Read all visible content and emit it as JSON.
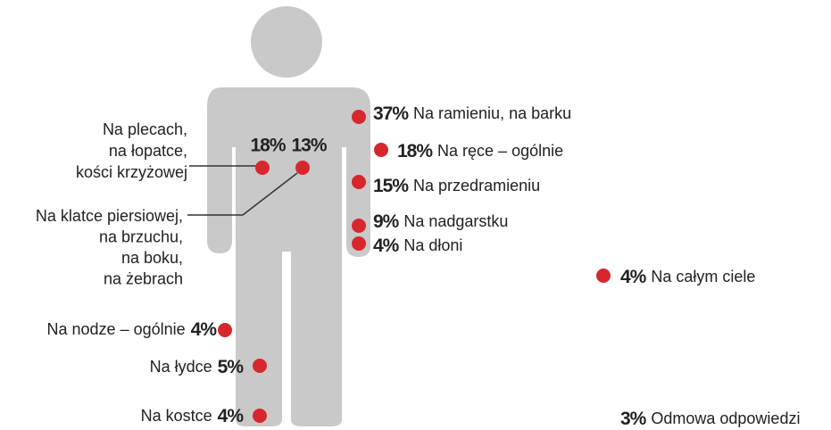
{
  "items": [
    {
      "percent": "37%",
      "label": [
        "Na ramieniu, na barku"
      ]
    },
    {
      "percent": "18%",
      "label": [
        "Na ręce – ogólnie"
      ]
    },
    {
      "percent": "15%",
      "label": [
        "Na przedramieniu"
      ]
    },
    {
      "percent": "9%",
      "label": [
        "Na nadgarstku"
      ]
    },
    {
      "percent": "4%",
      "label": [
        "Na dłoni"
      ]
    },
    {
      "percent": "4%",
      "label": [
        "Na całym ciele"
      ]
    },
    {
      "percent": "18%",
      "label": [
        "Na plecach,",
        "na łopatce,",
        "kości krzyżowej"
      ]
    },
    {
      "percent": "13%",
      "label": [
        "Na klatce piersiowej,",
        "na brzuchu,",
        "na boku,",
        "na żebrach"
      ]
    },
    {
      "percent": "4%",
      "label": [
        "Na nodze – ogólnie"
      ]
    },
    {
      "percent": "5%",
      "label": [
        "Na łydce"
      ]
    },
    {
      "percent": "4%",
      "label": [
        "Na kostce"
      ]
    },
    {
      "percent": "3%",
      "label": [
        "Odmowa odpowiedzi"
      ]
    }
  ]
}
